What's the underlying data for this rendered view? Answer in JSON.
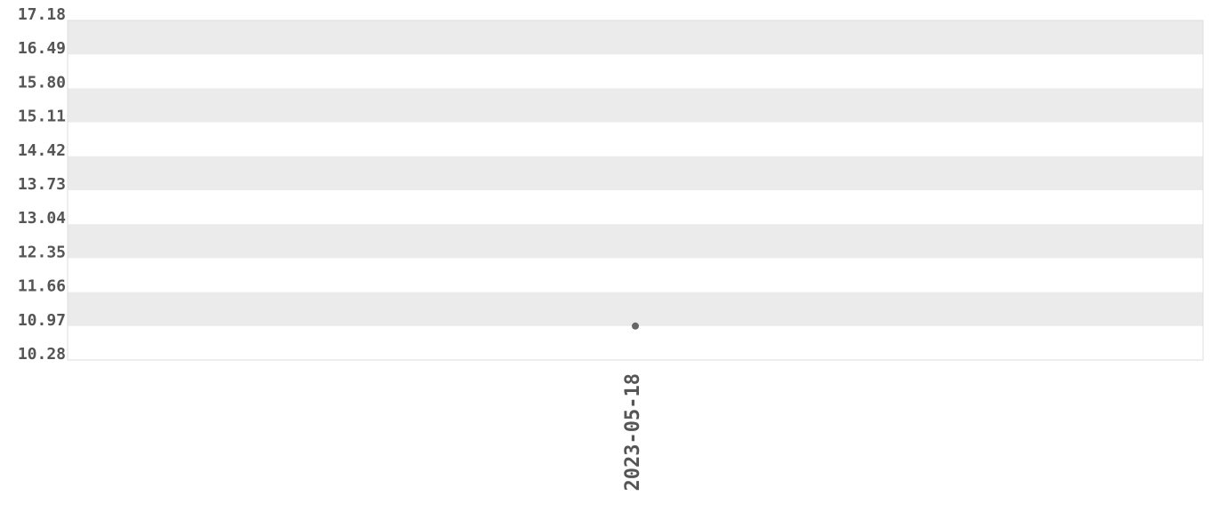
{
  "chart_data": {
    "type": "scatter",
    "title": "",
    "xlabel": "",
    "ylabel": "",
    "x_categories": [
      "2023-05-18"
    ],
    "series": [
      {
        "points": [
          {
            "x": "2023-05-18",
            "y": 10.97
          }
        ],
        "color": "#666666"
      }
    ],
    "ylim": [
      10.28,
      17.18
    ],
    "y_ticks": [
      "17.18",
      "16.49",
      "15.80",
      "15.11",
      "14.42",
      "13.73",
      "13.04",
      "12.35",
      "11.66",
      "10.97",
      "10.28"
    ],
    "grid": "alternating horizontal bands",
    "band_color": "#ebebeb",
    "legend": "none"
  }
}
